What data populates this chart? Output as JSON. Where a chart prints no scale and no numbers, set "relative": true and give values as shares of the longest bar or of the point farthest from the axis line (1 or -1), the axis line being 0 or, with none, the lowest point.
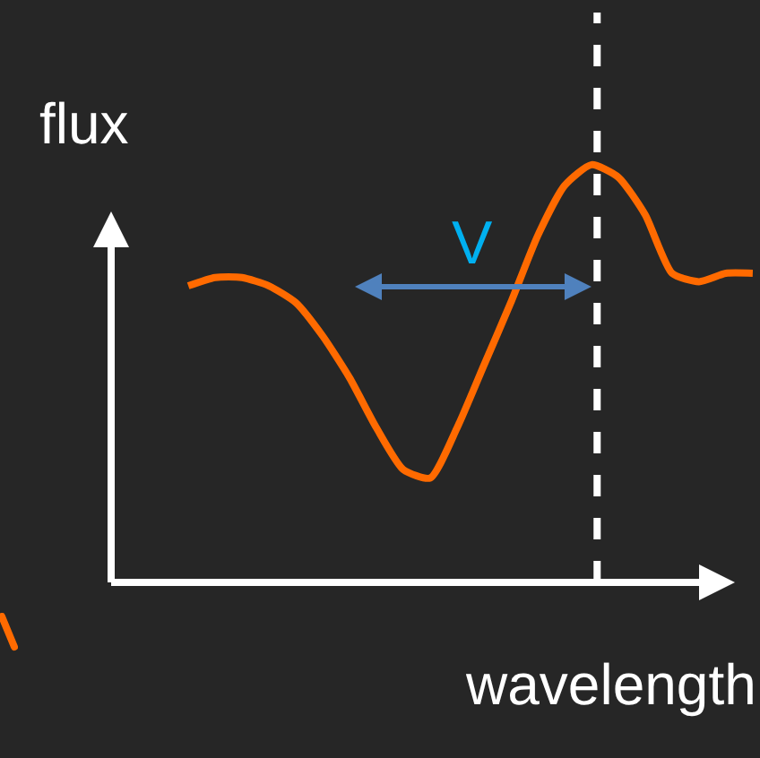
{
  "chart_data": {
    "type": "line",
    "relative": true,
    "xlabel": "wavelength",
    "ylabel": "flux",
    "categories": [
      null,
      null,
      null,
      null,
      null,
      null,
      null,
      null,
      null,
      null,
      null,
      null,
      null,
      null,
      null,
      null,
      null,
      null,
      null,
      null,
      null,
      null
    ],
    "series": [
      {
        "color": "#ff6a00",
        "values": [
          0.71,
          0.73,
          0.73,
          0.71,
          0.67,
          0.59,
          0.49,
          0.37,
          0.27,
          0.25,
          0.37,
          0.52,
          0.67,
          0.83,
          0.95,
          1,
          0.97,
          0.88,
          0.74,
          0.72,
          0.74,
          0.74
        ]
      }
    ],
    "annotations": [
      "V"
    ],
    "marker": "none",
    "line_style": "solid"
  }
}
